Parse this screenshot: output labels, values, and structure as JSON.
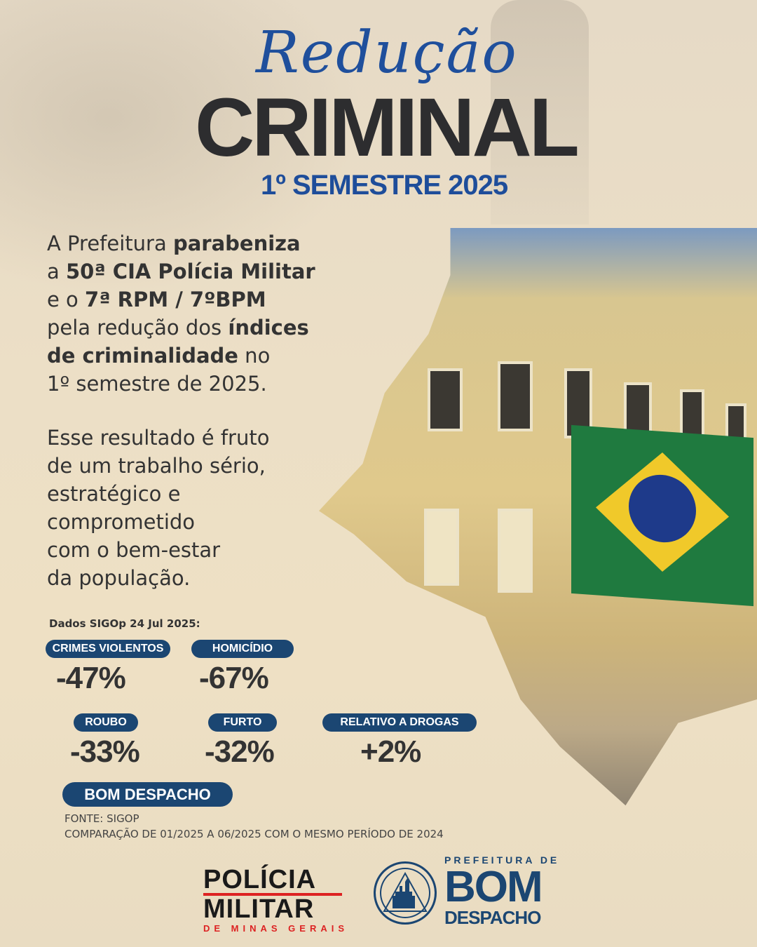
{
  "header": {
    "script_title": "Redução",
    "main_title": "CRIMINAL",
    "subtitle": "1º SEMESTRE 2025"
  },
  "paragraph1": [
    [
      {
        "t": "A Prefeitura ",
        "b": false
      },
      {
        "t": "parabeniza",
        "b": true
      }
    ],
    [
      {
        "t": "a ",
        "b": false
      },
      {
        "t": "50ª CIA Polícia Militar",
        "b": true
      }
    ],
    [
      {
        "t": "e o ",
        "b": false
      },
      {
        "t": "7ª RPM / 7ºBPM",
        "b": true
      }
    ],
    [
      {
        "t": "pela redução dos ",
        "b": false
      },
      {
        "t": "índices",
        "b": true
      }
    ],
    [
      {
        "t": "de criminalidade",
        "b": true
      },
      {
        "t": " no",
        "b": false
      }
    ],
    [
      {
        "t": "1º semestre de 2025.",
        "b": false
      }
    ]
  ],
  "paragraph2": [
    "Esse resultado é fruto",
    "de um trabalho sério,",
    "estratégico e",
    "comprometido",
    "com o bem-estar",
    "da população."
  ],
  "stats": {
    "header": "Dados SIGOp 24 Jul 2025:",
    "items": [
      {
        "label": "CRIMES VIOLENTOS",
        "value": "-47%"
      },
      {
        "label": "HOMICÍDIO",
        "value": "-67%"
      },
      {
        "label": "ROUBO",
        "value": "-33%"
      },
      {
        "label": "FURTO",
        "value": "-32%"
      },
      {
        "label": "RELATIVO A DROGAS",
        "value": "+2%"
      }
    ],
    "city": "BOM DESPACHO",
    "source": "FONTE: SIGOP",
    "comparison": "COMPARAÇÃO DE 01/2025 A 06/2025 COM O MESMO PERÍODO DE 2024"
  },
  "logos": {
    "pm_line1": "POLÍCIA",
    "pm_line2": "MILITAR",
    "pm_line3": "DE MINAS GERAIS",
    "pref_line1": "PREFEITURA DE",
    "pref_line2": "BOM",
    "pref_line3": "DESPACHO"
  },
  "colors": {
    "navy": "#1b4672",
    "title_blue": "#1e4d9a",
    "pm_red": "#d22222",
    "background": "#ecdfc6"
  }
}
